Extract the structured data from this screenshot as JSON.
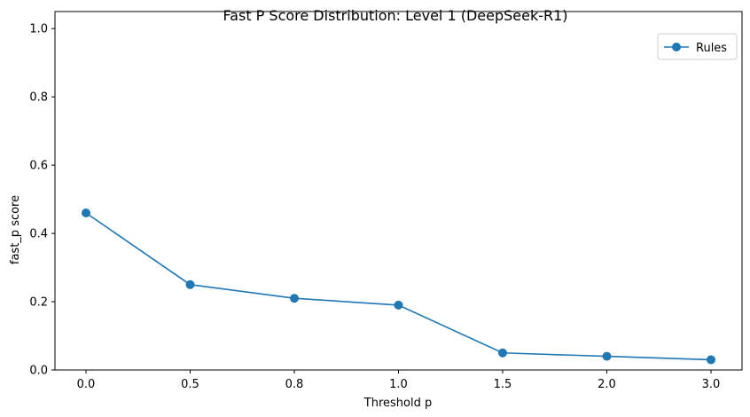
{
  "chart_data": {
    "type": "line",
    "title": "Fast P Score Distribution: Level 1 (DeepSeek-R1)",
    "xlabel": "Threshold p",
    "ylabel": "fast_p score",
    "categories": [
      "0.0",
      "0.5",
      "0.8",
      "1.0",
      "1.5",
      "2.0",
      "3.0"
    ],
    "series": [
      {
        "name": "Rules",
        "values": [
          0.46,
          0.25,
          0.21,
          0.19,
          0.05,
          0.04,
          0.03
        ]
      }
    ],
    "ylim": [
      0,
      1.05
    ],
    "yticks": [
      "0.0",
      "0.2",
      "0.4",
      "0.6",
      "0.8",
      "1.0"
    ],
    "legend": "top-right",
    "grid": false,
    "colors": {
      "series": "#1f77b4",
      "axis": "#000000",
      "legend_border": "#cccccc"
    }
  }
}
